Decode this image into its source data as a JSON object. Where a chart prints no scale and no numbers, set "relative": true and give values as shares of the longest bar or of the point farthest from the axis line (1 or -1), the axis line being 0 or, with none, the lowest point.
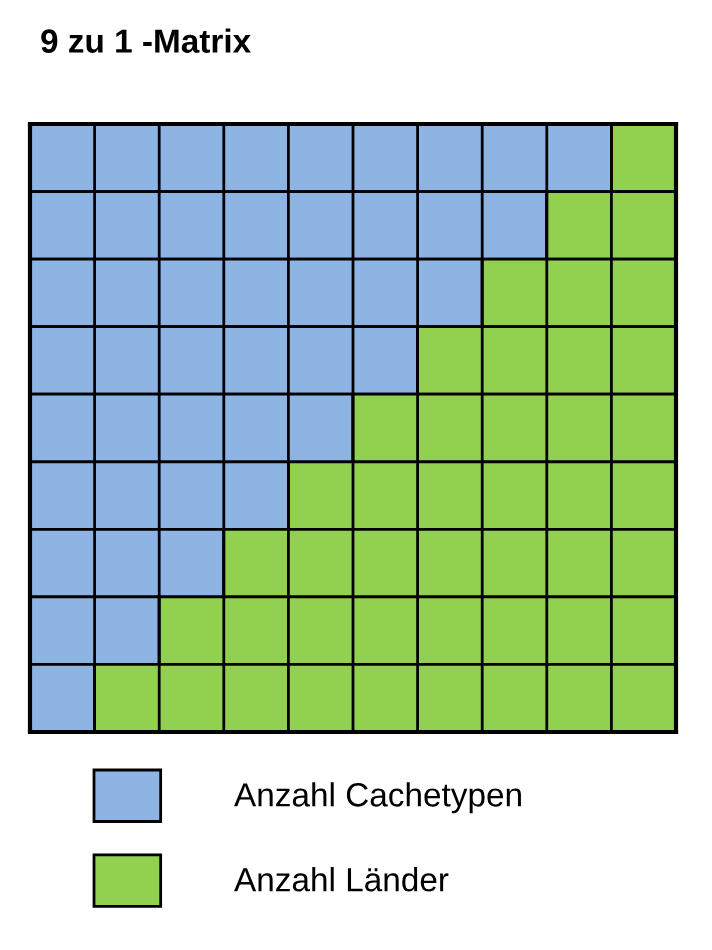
{
  "chart_data": {
    "type": "bar",
    "title": "9 zu 1 -Matrix",
    "orientation": "horizontal",
    "stacked": true,
    "relative": true,
    "categories": [
      null,
      null,
      null,
      null,
      null,
      null,
      null,
      null,
      null
    ],
    "series": [
      {
        "name": "Anzahl Cachetypen",
        "color": "#8eb4e3",
        "values": [
          0.9,
          0.8,
          0.7,
          0.6,
          0.5,
          0.4,
          0.3,
          0.2,
          0.1
        ]
      },
      {
        "name": "Anzahl Länder",
        "color": "#92d050",
        "values": [
          0.1,
          0.2,
          0.3,
          0.4,
          0.5,
          0.6,
          0.7,
          0.8,
          0.9
        ]
      }
    ],
    "grid": "x",
    "legend": "bottom"
  }
}
